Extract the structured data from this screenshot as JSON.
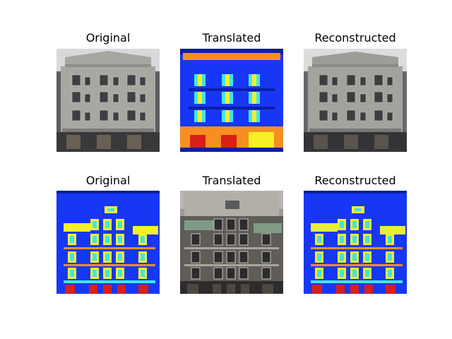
{
  "figure": {
    "rows": [
      {
        "panels": [
          {
            "title": "Original",
            "kind": "photo"
          },
          {
            "title": "Translated",
            "kind": "segmentation"
          },
          {
            "title": "Reconstructed",
            "kind": "photo"
          }
        ]
      },
      {
        "panels": [
          {
            "title": "Original",
            "kind": "segmentation"
          },
          {
            "title": "Translated",
            "kind": "photo"
          },
          {
            "title": "Reconstructed",
            "kind": "segmentation"
          }
        ]
      }
    ]
  },
  "colors": {
    "facade_gray": "#a7a6a0",
    "window_dark": "#3b3d3f",
    "seg_blue": "#1737f5",
    "seg_deep_blue": "#0d1ea3",
    "seg_yellow": "#f7ef28",
    "seg_cyan": "#41e7e7",
    "seg_red": "#d81f18",
    "seg_orange": "#f68f21"
  }
}
